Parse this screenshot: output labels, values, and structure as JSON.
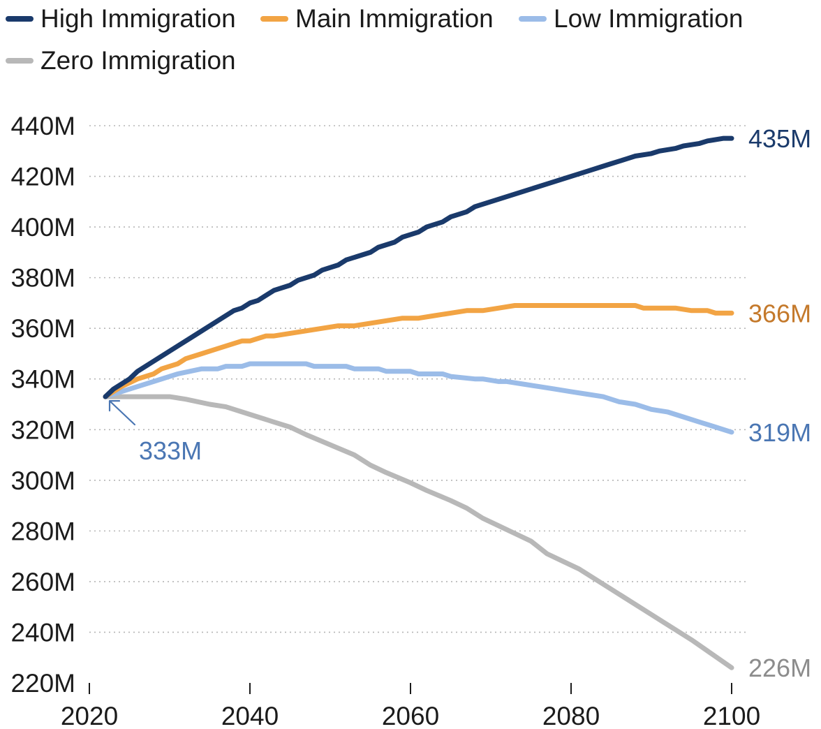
{
  "chart_data": {
    "type": "line",
    "title": "",
    "xlabel": "",
    "ylabel": "",
    "xlim": [
      2020,
      2100
    ],
    "ylim": [
      220,
      440
    ],
    "x_ticks": [
      2020,
      2040,
      2060,
      2080,
      2100
    ],
    "x_tick_labels": [
      "2020",
      "2040",
      "2060",
      "2080",
      "2100"
    ],
    "y_ticks": [
      220,
      240,
      260,
      280,
      300,
      320,
      340,
      360,
      380,
      400,
      420,
      440
    ],
    "y_tick_labels": [
      "220M",
      "240M",
      "260M",
      "280M",
      "300M",
      "320M",
      "340M",
      "360M",
      "380M",
      "400M",
      "420M",
      "440M"
    ],
    "grid": "horizontal dotted",
    "legend_position": "top-left",
    "start_annotation": {
      "x": 2022,
      "y": 333,
      "label": "333M",
      "color": "#4a76b3"
    },
    "series": [
      {
        "name": "High Immigration",
        "color": "#1a3a6b",
        "label_color": "#1a3a6b",
        "end_label": "435M",
        "x": [
          2022,
          2023,
          2025,
          2026,
          2028,
          2030,
          2033,
          2036,
          2038,
          2039,
          2040,
          2041,
          2043,
          2045,
          2046,
          2048,
          2049,
          2051,
          2052,
          2055,
          2056,
          2058,
          2059,
          2061,
          2062,
          2064,
          2065,
          2067,
          2068,
          2070,
          2071,
          2074,
          2078,
          2082,
          2084,
          2085,
          2087,
          2088,
          2090,
          2091,
          2093,
          2094,
          2096,
          2097,
          2099,
          2100
        ],
        "y": [
          333,
          336,
          340,
          343,
          347,
          351,
          357,
          363,
          367,
          368,
          370,
          371,
          375,
          377,
          379,
          381,
          383,
          385,
          387,
          390,
          392,
          394,
          396,
          398,
          400,
          402,
          404,
          406,
          408,
          410,
          411,
          414,
          418,
          422,
          424,
          425,
          427,
          428,
          429,
          430,
          431,
          432,
          433,
          434,
          435,
          435
        ]
      },
      {
        "name": "Main Immigration",
        "color": "#f2a444",
        "label_color": "#c4792b",
        "end_label": "366M",
        "x": [
          2022,
          2024,
          2026,
          2028,
          2029,
          2031,
          2032,
          2034,
          2036,
          2038,
          2039,
          2040,
          2042,
          2043,
          2045,
          2047,
          2049,
          2051,
          2053,
          2055,
          2057,
          2059,
          2061,
          2063,
          2065,
          2067,
          2069,
          2071,
          2073,
          2077,
          2081,
          2085,
          2088,
          2089,
          2091,
          2093,
          2095,
          2097,
          2098,
          2100
        ],
        "y": [
          333,
          337,
          340,
          342,
          344,
          346,
          348,
          350,
          352,
          354,
          355,
          355,
          357,
          357,
          358,
          359,
          360,
          361,
          361,
          362,
          363,
          364,
          364,
          365,
          366,
          367,
          367,
          368,
          369,
          369,
          369,
          369,
          369,
          368,
          368,
          368,
          367,
          367,
          366,
          366
        ]
      },
      {
        "name": "Low Immigration",
        "color": "#9bbce8",
        "label_color": "#4a76b3",
        "end_label": "319M",
        "x": [
          2022,
          2025,
          2028,
          2031,
          2034,
          2036,
          2037,
          2039,
          2040,
          2044,
          2047,
          2048,
          2052,
          2053,
          2056,
          2057,
          2060,
          2061,
          2064,
          2065,
          2068,
          2069,
          2071,
          2072,
          2074,
          2076,
          2078,
          2080,
          2082,
          2084,
          2086,
          2088,
          2090,
          2092,
          2094,
          2096,
          2098,
          2100
        ],
        "y": [
          333,
          336,
          339,
          342,
          344,
          344,
          345,
          345,
          346,
          346,
          346,
          345,
          345,
          344,
          344,
          343,
          343,
          342,
          342,
          341,
          340,
          340,
          339,
          339,
          338,
          337,
          336,
          335,
          334,
          333,
          331,
          330,
          328,
          327,
          325,
          323,
          321,
          319
        ]
      },
      {
        "name": "Zero Immigration",
        "color": "#b8b8b8",
        "label_color": "#8c8c8c",
        "end_label": "226M",
        "x": [
          2022,
          2025,
          2030,
          2032,
          2035,
          2037,
          2040,
          2043,
          2045,
          2047,
          2050,
          2053,
          2055,
          2057,
          2060,
          2062,
          2065,
          2067,
          2069,
          2071,
          2073,
          2075,
          2077,
          2079,
          2081,
          2085,
          2090,
          2095,
          2100
        ],
        "y": [
          333,
          333,
          333,
          332,
          330,
          329,
          326,
          323,
          321,
          318,
          314,
          310,
          306,
          303,
          299,
          296,
          292,
          289,
          285,
          282,
          279,
          276,
          271,
          268,
          265,
          257,
          247,
          237,
          226
        ]
      }
    ]
  }
}
